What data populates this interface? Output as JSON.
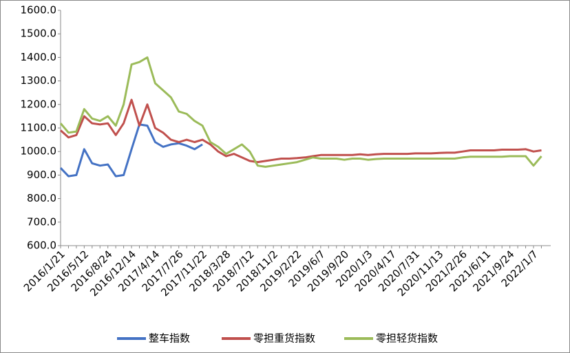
{
  "chart_data": {
    "type": "line",
    "categories": [
      "2016/1/21",
      null,
      null,
      "2016/5/12",
      null,
      null,
      "2016/8/24",
      null,
      null,
      "2016/12/14",
      null,
      null,
      "2017/4/14",
      null,
      null,
      "2017/7/26",
      null,
      null,
      "2017/11/22",
      null,
      null,
      "2018/3/28",
      null,
      null,
      "2018/7/12",
      null,
      null,
      "2018/11/2",
      null,
      null,
      "2019/2/22",
      null,
      null,
      "2019/6/7",
      null,
      null,
      "2019/9/20",
      null,
      null,
      "2020/1/3",
      null,
      null,
      "2020/4/17",
      null,
      null,
      "2020/7/31",
      null,
      null,
      "2020/11/13",
      null,
      null,
      "2021/2/26",
      null,
      null,
      "2021/6/11",
      null,
      null,
      "2021/9/24",
      null,
      null,
      "2022/1/7",
      null
    ],
    "series": [
      {
        "name": "整车指数",
        "color": "#4472c4",
        "values": [
          930,
          895,
          900,
          1010,
          950,
          940,
          945,
          895,
          900,
          1010,
          1115,
          1110,
          1040,
          1020,
          1030,
          1035,
          1025,
          1010,
          1030,
          null,
          null,
          null,
          null,
          null,
          null,
          null,
          null,
          null,
          null,
          null,
          null,
          null,
          null,
          null,
          null,
          null,
          null,
          null,
          null,
          null,
          null,
          null,
          null,
          null,
          null,
          null,
          null,
          null,
          null,
          null,
          null,
          null,
          null,
          null,
          null,
          null,
          null,
          null,
          null,
          null,
          null,
          null
        ]
      },
      {
        "name": "零担重货指数",
        "color": "#c0504d",
        "values": [
          1090,
          1060,
          1070,
          1150,
          1120,
          1115,
          1120,
          1070,
          1120,
          1220,
          1110,
          1200,
          1100,
          1080,
          1050,
          1040,
          1050,
          1040,
          1050,
          1030,
          1000,
          980,
          990,
          975,
          960,
          955,
          960,
          965,
          970,
          970,
          972,
          975,
          980,
          985,
          985,
          985,
          985,
          985,
          988,
          985,
          988,
          990,
          990,
          990,
          990,
          992,
          992,
          992,
          994,
          995,
          995,
          1000,
          1005,
          1005,
          1005,
          1005,
          1008,
          1008,
          1008,
          1010,
          1000,
          1005
        ]
      },
      {
        "name": "零担轻货指数",
        "color": "#9bbb59",
        "values": [
          1120,
          1080,
          1085,
          1180,
          1140,
          1130,
          1150,
          1110,
          1200,
          1370,
          1380,
          1400,
          1290,
          1260,
          1230,
          1170,
          1160,
          1130,
          1110,
          1040,
          1020,
          990,
          1010,
          1030,
          1000,
          940,
          935,
          940,
          945,
          950,
          955,
          965,
          975,
          970,
          970,
          970,
          965,
          970,
          970,
          965,
          968,
          970,
          970,
          970,
          970,
          970,
          970,
          970,
          970,
          970,
          970,
          975,
          978,
          978,
          978,
          978,
          978,
          980,
          980,
          980,
          940,
          980
        ]
      }
    ],
    "ylim": [
      600,
      1600
    ],
    "yticks": [
      {
        "value": 600,
        "label": "600.0"
      },
      {
        "value": 700,
        "label": "700.0"
      },
      {
        "value": 800,
        "label": "800.0"
      },
      {
        "value": 900,
        "label": "900.0"
      },
      {
        "value": 1000,
        "label": "1000.0"
      },
      {
        "value": 1100,
        "label": "1100.0"
      },
      {
        "value": 1200,
        "label": "1200.0"
      },
      {
        "value": 1300,
        "label": "1300.0"
      },
      {
        "value": 1400,
        "label": "1400.0"
      },
      {
        "value": 1500,
        "label": "1500.0"
      },
      {
        "value": 1600,
        "label": "1600.0"
      }
    ],
    "legend": "bottom"
  }
}
